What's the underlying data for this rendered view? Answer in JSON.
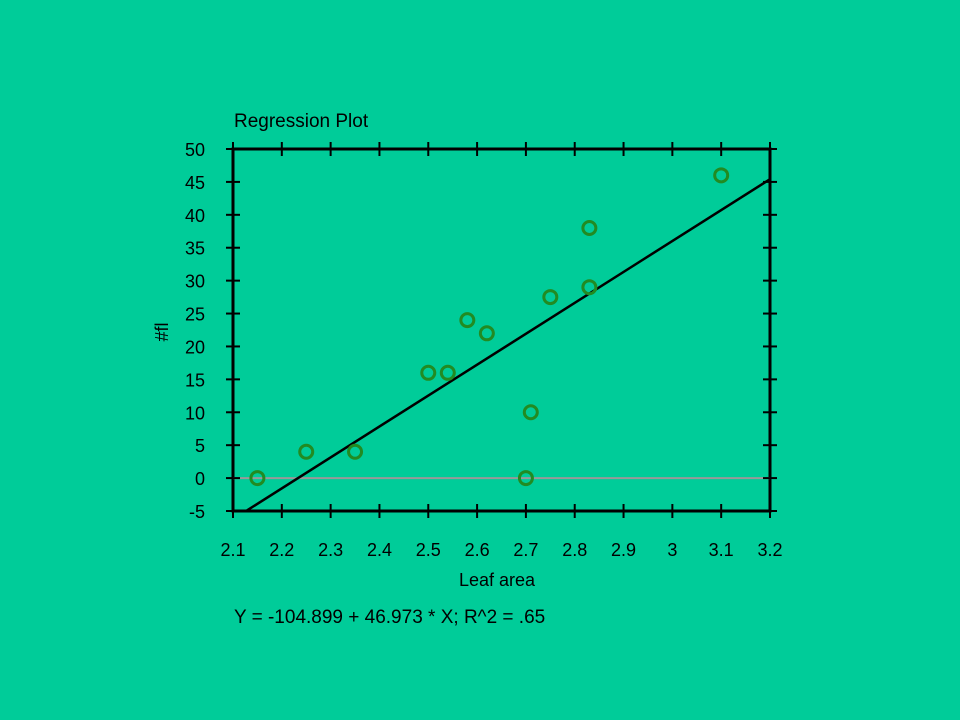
{
  "background_color": "#00CC99",
  "chart_data": {
    "type": "scatter",
    "title": "Regression Plot",
    "xlabel": "Leaf area",
    "ylabel": "#fl",
    "equation": "Y = -104.899 + 46.973 * X; R^2 = .65",
    "regression": {
      "intercept": -104.899,
      "slope": 46.973,
      "r_squared": 0.65
    },
    "xlim": [
      2.1,
      3.2
    ],
    "ylim": [
      -5,
      50
    ],
    "xticks": [
      "2.1",
      "2.2",
      "2.3",
      "2.4",
      "2.5",
      "2.6",
      "2.7",
      "2.8",
      "2.9",
      "3",
      "3.1",
      "3.2"
    ],
    "yticks": [
      "50",
      "45",
      "40",
      "35",
      "30",
      "25",
      "20",
      "15",
      "10",
      "5",
      "0",
      "-5"
    ],
    "points": [
      {
        "x": 2.15,
        "y": 0
      },
      {
        "x": 2.25,
        "y": 4
      },
      {
        "x": 2.35,
        "y": 4
      },
      {
        "x": 2.5,
        "y": 16
      },
      {
        "x": 2.54,
        "y": 16
      },
      {
        "x": 2.58,
        "y": 24
      },
      {
        "x": 2.62,
        "y": 22
      },
      {
        "x": 2.7,
        "y": 0
      },
      {
        "x": 2.71,
        "y": 10
      },
      {
        "x": 2.75,
        "y": 27.5
      },
      {
        "x": 2.83,
        "y": 38
      },
      {
        "x": 2.83,
        "y": 29
      },
      {
        "x": 3.1,
        "y": 46
      }
    ],
    "zero_line": true,
    "grid": false,
    "legend": false,
    "colors": {
      "marker": "#228B22",
      "line": "#000000",
      "zero_line": "#999999"
    }
  }
}
